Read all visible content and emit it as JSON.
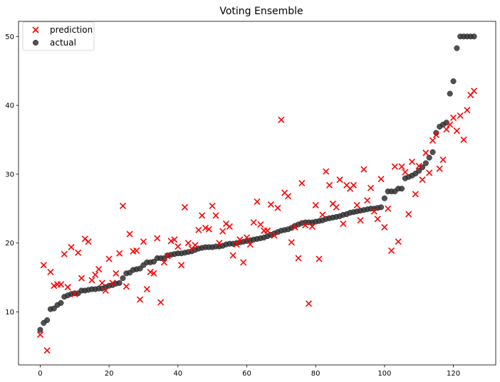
{
  "chart_data": {
    "type": "scatter",
    "title": "Voting Ensemble",
    "xlabel": "",
    "ylabel": "",
    "xlim": [
      -6.3,
      132.3
    ],
    "ylim": [
      2.3,
      52.2
    ],
    "xticks": [
      0,
      20,
      40,
      60,
      80,
      100,
      120
    ],
    "yticks": [
      10,
      20,
      30,
      40,
      50
    ],
    "grid": false,
    "legend_position": "top-left",
    "series": [
      {
        "name": "prediction",
        "marker": "x",
        "color": "#ff0000",
        "x": [
          0,
          1,
          2,
          3,
          4,
          5,
          6,
          7,
          8,
          9,
          10,
          11,
          12,
          13,
          14,
          15,
          16,
          17,
          18,
          19,
          20,
          21,
          22,
          23,
          24,
          25,
          26,
          27,
          28,
          29,
          30,
          31,
          32,
          33,
          34,
          35,
          36,
          37,
          38,
          39,
          40,
          41,
          42,
          43,
          44,
          45,
          46,
          47,
          48,
          49,
          50,
          51,
          52,
          53,
          54,
          55,
          56,
          57,
          58,
          59,
          60,
          61,
          62,
          63,
          64,
          65,
          66,
          67,
          68,
          69,
          70,
          71,
          72,
          73,
          74,
          75,
          76,
          77,
          78,
          79,
          80,
          81,
          82,
          83,
          84,
          85,
          86,
          87,
          88,
          89,
          90,
          91,
          92,
          93,
          94,
          95,
          96,
          97,
          98,
          99,
          100,
          101,
          102,
          103,
          104,
          105,
          106,
          107,
          108,
          109,
          110,
          111,
          112,
          113,
          114,
          115,
          116,
          117,
          118,
          119,
          120,
          121,
          122,
          123,
          124,
          125,
          126
        ],
        "y": [
          6.7,
          16.8,
          4.4,
          15.8,
          13.8,
          14.0,
          14.0,
          18.4,
          13.6,
          19.4,
          12.6,
          18.6,
          14.9,
          20.6,
          20.2,
          14.6,
          15.4,
          16.2,
          14.2,
          13.1,
          17.7,
          14.2,
          15.6,
          18.5,
          25.4,
          13.7,
          21.3,
          18.8,
          18.9,
          11.8,
          20.2,
          13.3,
          15.8,
          15.6,
          20.7,
          11.4,
          17.2,
          18.1,
          20.3,
          20.5,
          19.5,
          16.8,
          25.2,
          20.0,
          19.2,
          19.7,
          21.9,
          24.0,
          22.2,
          22.0,
          25.4,
          24.0,
          20.0,
          21.7,
          22.8,
          22.4,
          18.2,
          19.8,
          20.5,
          17.2,
          20.8,
          19.8,
          23.0,
          26.0,
          22.7,
          21.8,
          21.8,
          25.6,
          21.1,
          25.1,
          37.9,
          27.3,
          26.8,
          20.1,
          22.3,
          17.8,
          28.7,
          22.6,
          11.2,
          22.4,
          25.5,
          17.7,
          24.1,
          30.4,
          28.4,
          25.7,
          25.2,
          29.2,
          22.8,
          28.4,
          27.9,
          28.4,
          25.5,
          23.3,
          30.7,
          26.2,
          28.0,
          24.6,
          23.5,
          29.3,
          22.3,
          25.0,
          18.9,
          31.1,
          20.2,
          31.1,
          30.3,
          24.2,
          31.8,
          27.1,
          31.2,
          29.2,
          33.1,
          30.2,
          34.9,
          35.7,
          30.8,
          32.1,
          36.5,
          37.2,
          38.2,
          36.3,
          38.5,
          35.0,
          39.3,
          41.5,
          42.1
        ]
      },
      {
        "name": "actual",
        "marker": "o",
        "color": "#333333",
        "x": [
          0,
          1,
          2,
          3,
          4,
          5,
          6,
          7,
          8,
          9,
          10,
          11,
          12,
          13,
          14,
          15,
          16,
          17,
          18,
          19,
          20,
          21,
          22,
          23,
          24,
          25,
          26,
          27,
          28,
          29,
          30,
          31,
          32,
          33,
          34,
          35,
          36,
          37,
          38,
          39,
          40,
          41,
          42,
          43,
          44,
          45,
          46,
          47,
          48,
          49,
          50,
          51,
          52,
          53,
          54,
          55,
          56,
          57,
          58,
          59,
          60,
          61,
          62,
          63,
          64,
          65,
          66,
          67,
          68,
          69,
          70,
          71,
          72,
          73,
          74,
          75,
          76,
          77,
          78,
          79,
          80,
          81,
          82,
          83,
          84,
          85,
          86,
          87,
          88,
          89,
          90,
          91,
          92,
          93,
          94,
          95,
          96,
          97,
          98,
          99,
          100,
          101,
          102,
          103,
          104,
          105,
          106,
          107,
          108,
          109,
          110,
          111,
          112,
          113,
          114,
          115,
          116,
          117,
          118,
          119,
          120,
          121,
          122,
          123,
          124,
          125,
          126
        ],
        "y": [
          7.4,
          8.4,
          8.8,
          10.4,
          10.5,
          11.0,
          11.3,
          12.2,
          12.4,
          12.6,
          12.7,
          12.7,
          13.1,
          13.1,
          13.2,
          13.3,
          13.3,
          13.4,
          13.4,
          13.6,
          13.8,
          13.9,
          14.1,
          14.2,
          14.9,
          15.6,
          15.7,
          16.1,
          16.2,
          16.3,
          16.8,
          17.2,
          17.2,
          17.3,
          17.8,
          17.8,
          17.8,
          18.2,
          18.3,
          18.4,
          18.5,
          18.5,
          18.6,
          18.7,
          18.8,
          19.0,
          19.2,
          19.3,
          19.4,
          19.4,
          19.4,
          19.5,
          19.5,
          19.6,
          19.8,
          19.9,
          19.9,
          20.0,
          20.1,
          20.2,
          20.3,
          20.4,
          20.5,
          20.6,
          20.7,
          20.8,
          21.0,
          21.2,
          21.4,
          21.6,
          21.8,
          21.9,
          22.0,
          22.2,
          22.5,
          22.7,
          22.9,
          23.0,
          23.0,
          23.0,
          23.1,
          23.2,
          23.3,
          23.5,
          23.6,
          23.7,
          23.8,
          23.9,
          24.1,
          24.2,
          24.4,
          24.5,
          24.6,
          24.7,
          24.8,
          24.9,
          25.0,
          25.0,
          25.1,
          25.2,
          26.5,
          27.5,
          27.5,
          27.5,
          27.9,
          27.9,
          29.4,
          29.6,
          29.8,
          30.1,
          30.5,
          31.0,
          31.6,
          32.4,
          33.2,
          36.0,
          36.9,
          37.2,
          37.5,
          41.7,
          43.5,
          48.3,
          50.0,
          50.0,
          50.0,
          50.0,
          50.0
        ]
      }
    ]
  }
}
